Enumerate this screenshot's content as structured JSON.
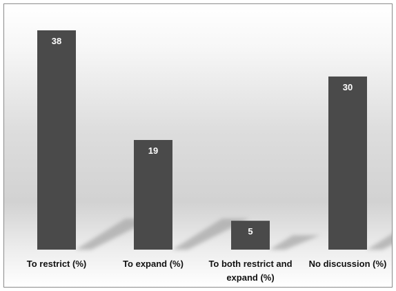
{
  "chart_data": {
    "type": "bar",
    "categories": [
      "To restrict (%)",
      "To expand (%)",
      "To both restrict and expand (%)",
      "No discussion (%)"
    ],
    "category_lines": [
      [
        "To restrict (%)"
      ],
      [
        "To expand (%)"
      ],
      [
        "To both restrict and",
        "expand (%)"
      ],
      [
        "No discussion (%)"
      ]
    ],
    "values": [
      38,
      19,
      5,
      30
    ],
    "data_labels": [
      "38",
      "19",
      "5",
      "30"
    ],
    "ylim": [
      0,
      40
    ],
    "grid": false,
    "legend": "none",
    "bar_color": "#4a4a4a",
    "label_color": "#ffffff"
  }
}
